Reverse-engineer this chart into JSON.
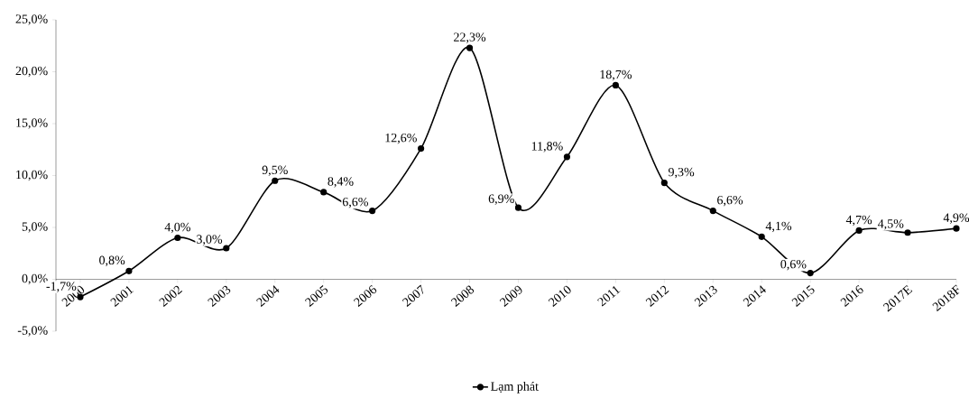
{
  "chart_data": {
    "type": "line",
    "categories": [
      "2000",
      "2001",
      "2002",
      "2003",
      "2004",
      "2005",
      "2006",
      "2007",
      "2008",
      "2009",
      "2010",
      "2011",
      "2012",
      "2013",
      "2014",
      "2015",
      "2016",
      "2017E",
      "2018F"
    ],
    "series": [
      {
        "name": "Lạm phát",
        "color": "#000000",
        "values": [
          -1.7,
          0.8,
          4.0,
          3.0,
          9.5,
          8.4,
          6.6,
          12.6,
          22.3,
          6.9,
          11.8,
          18.7,
          9.3,
          6.6,
          4.1,
          0.6,
          4.7,
          4.5,
          4.9
        ],
        "value_labels": [
          "-1,7%",
          "0,8%",
          "4,0%",
          "3,0%",
          "9,5%",
          "8,4%",
          "6,6%",
          "12,6%",
          "22,3%",
          "6,9%",
          "11,8%",
          "18,7%",
          "9,3%",
          "6,6%",
          "4,1%",
          "0,6%",
          "4,7%",
          "4,5%",
          "4,9%"
        ]
      }
    ],
    "ylim": [
      -5,
      25
    ],
    "yticks": [
      {
        "value": -5,
        "label": "-5,0%"
      },
      {
        "value": 0,
        "label": "0,0%"
      },
      {
        "value": 5,
        "label": "5,0%"
      },
      {
        "value": 10,
        "label": "10,0%"
      },
      {
        "value": 15,
        "label": "15,0%"
      },
      {
        "value": 20,
        "label": "20,0%"
      },
      {
        "value": 25,
        "label": "25,0%"
      }
    ],
    "marker": "circle",
    "legend": "bottom",
    "grid": false
  }
}
